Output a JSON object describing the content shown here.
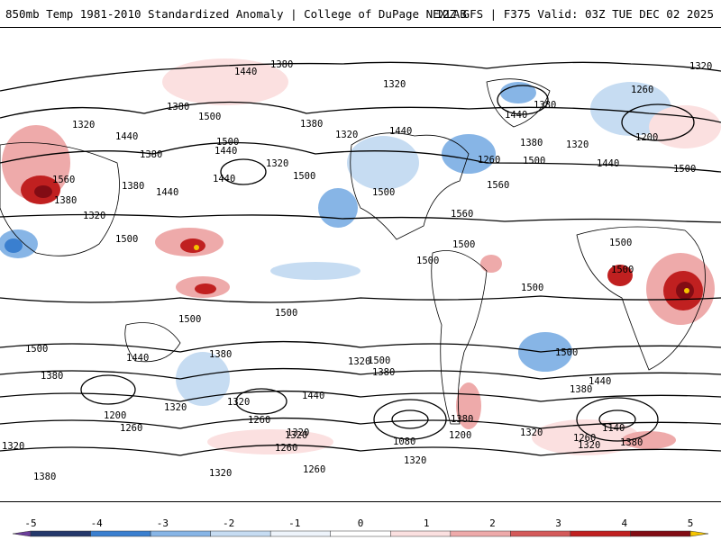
{
  "header": {
    "left_title": "850mb Temp 1981-2010 Standardized Anomaly | College of DuPage NEXLAB",
    "right_title": "12Z GFS | F375 Valid: 03Z TUE DEC 02 2025"
  },
  "map": {
    "contour_labels": [
      {
        "id": "c1",
        "text": "1440"
      },
      {
        "id": "c2",
        "text": "1380"
      },
      {
        "id": "c3",
        "text": "1320"
      },
      {
        "id": "c4",
        "text": "1380"
      },
      {
        "id": "c5",
        "text": "1500"
      },
      {
        "id": "c6",
        "text": "1440"
      },
      {
        "id": "c7",
        "text": "1500"
      },
      {
        "id": "c8",
        "text": "1440"
      },
      {
        "id": "c9",
        "text": "1380"
      },
      {
        "id": "c10",
        "text": "1320"
      },
      {
        "id": "c11",
        "text": "1500"
      },
      {
        "id": "c12",
        "text": "1440"
      },
      {
        "id": "c13",
        "text": "1320"
      },
      {
        "id": "c14",
        "text": "1380"
      },
      {
        "id": "c15",
        "text": "1440"
      },
      {
        "id": "c16",
        "text": "1500"
      },
      {
        "id": "c17",
        "text": "1320"
      },
      {
        "id": "c18",
        "text": "1440"
      },
      {
        "id": "c19",
        "text": "1380"
      },
      {
        "id": "c20",
        "text": "1260"
      },
      {
        "id": "c21",
        "text": "1380"
      },
      {
        "id": "c22",
        "text": "1320"
      },
      {
        "id": "c23",
        "text": "1260"
      },
      {
        "id": "c24",
        "text": "1200"
      },
      {
        "id": "c25",
        "text": "1500"
      },
      {
        "id": "c26",
        "text": "1440"
      },
      {
        "id": "c27",
        "text": "1560"
      },
      {
        "id": "c28",
        "text": "1560"
      },
      {
        "id": "c29",
        "text": "1500"
      },
      {
        "id": "c30",
        "text": "1320"
      },
      {
        "id": "c31",
        "text": "1440"
      },
      {
        "id": "c32",
        "text": "1380"
      },
      {
        "id": "c33",
        "text": "1320"
      },
      {
        "id": "c34",
        "text": "1380"
      },
      {
        "id": "c35",
        "text": "1500"
      },
      {
        "id": "c36",
        "text": "1560"
      },
      {
        "id": "c37",
        "text": "1500"
      },
      {
        "id": "c38",
        "text": "1500"
      },
      {
        "id": "c39",
        "text": "1500"
      },
      {
        "id": "c40",
        "text": "1500"
      },
      {
        "id": "c41",
        "text": "1500"
      },
      {
        "id": "c42",
        "text": "1500"
      },
      {
        "id": "c43",
        "text": "1500"
      },
      {
        "id": "c44",
        "text": "1500"
      },
      {
        "id": "c45",
        "text": "1440"
      },
      {
        "id": "c46",
        "text": "1380"
      },
      {
        "id": "c47",
        "text": "1380"
      },
      {
        "id": "c48",
        "text": "1320"
      },
      {
        "id": "c49",
        "text": "1200"
      },
      {
        "id": "c50",
        "text": "1260"
      },
      {
        "id": "c51",
        "text": "1320"
      },
      {
        "id": "c52",
        "text": "1380"
      },
      {
        "id": "c53",
        "text": "1320"
      },
      {
        "id": "c54",
        "text": "1440"
      },
      {
        "id": "c55",
        "text": "1320"
      },
      {
        "id": "c56",
        "text": "1260"
      },
      {
        "id": "c57",
        "text": "1500"
      },
      {
        "id": "c58",
        "text": "1380"
      },
      {
        "id": "c59",
        "text": "1320"
      },
      {
        "id": "c60",
        "text": "1260"
      },
      {
        "id": "c61",
        "text": "1080"
      },
      {
        "id": "c62",
        "text": "1200"
      },
      {
        "id": "c63",
        "text": "1320"
      },
      {
        "id": "c64",
        "text": "1440"
      },
      {
        "id": "c65",
        "text": "1380"
      },
      {
        "id": "c66",
        "text": "1140"
      },
      {
        "id": "c67",
        "text": "1260"
      },
      {
        "id": "c68",
        "text": "1320"
      },
      {
        "id": "c69",
        "text": "1380"
      },
      {
        "id": "c70",
        "text": "1320"
      },
      {
        "id": "c71",
        "text": "1320"
      },
      {
        "id": "c72",
        "text": "1260"
      },
      {
        "id": "c73",
        "text": "1320"
      },
      {
        "id": "c74",
        "text": "1380"
      },
      {
        "id": "c75",
        "text": "1500"
      }
    ]
  },
  "colorbar": {
    "ticks": [
      "-5",
      "-4",
      "-3",
      "-2",
      "-1",
      "0",
      "1",
      "2",
      "3",
      "4",
      "5"
    ],
    "colors": [
      "#6a3d9a",
      "#24386b",
      "#3a7fcf",
      "#87b5e6",
      "#c6dcf2",
      "#eef4fb",
      "#ffffff",
      "#fbe0e0",
      "#eeaaaa",
      "#d45a5a",
      "#c02020",
      "#820c14",
      "#f4c400"
    ]
  }
}
